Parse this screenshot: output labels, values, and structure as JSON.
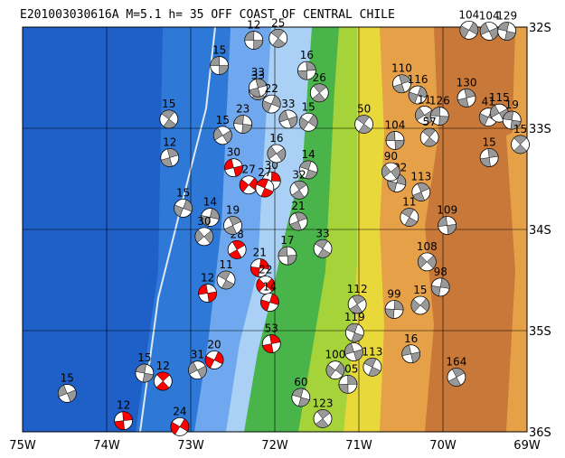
{
  "chart_data": {
    "type": "map",
    "title": "E201003030616A M=5.1 h= 35 OFF COAST OF CENTRAL CHILE",
    "xlim": [
      -75,
      -69
    ],
    "ylim": [
      -36,
      -32
    ],
    "xticks": [
      {
        "value": -75,
        "label": "75W"
      },
      {
        "value": -74,
        "label": "74W"
      },
      {
        "value": -73,
        "label": "73W"
      },
      {
        "value": -72,
        "label": "72W"
      },
      {
        "value": -71,
        "label": "71W"
      },
      {
        "value": -70,
        "label": "70W"
      },
      {
        "value": -69,
        "label": "69W"
      }
    ],
    "yticks": [
      {
        "value": -32,
        "label": "32S"
      },
      {
        "value": -33,
        "label": "33S"
      },
      {
        "value": -34,
        "label": "34S"
      },
      {
        "value": -35,
        "label": "35S"
      },
      {
        "value": -36,
        "label": "36S"
      }
    ],
    "grid": true,
    "points": {
      "x": [
        -72.66,
        -73.26,
        -73.25,
        -73.09,
        -72.62,
        -72.38,
        -72.2,
        -72.04,
        -72.72,
        -72.92,
        -73.55,
        -73.33,
        -73.8,
        -73.13,
        -74.47,
        -71.69,
        -71.43,
        -71.13,
        -71.28,
        -71.06,
        -71.05,
        -71.02,
        -70.58,
        -70.27,
        -70.38,
        -70.84,
        -69.84,
        -70.03,
        -70.19,
        -69.95,
        -70.4,
        -70.26,
        -70.55,
        -70.62,
        -70.57,
        -70.94,
        -70.49,
        -70.3,
        -70.22,
        -70.04,
        -70.16,
        -69.72,
        -69.46,
        -69.33,
        -69.18,
        -69.08,
        -69.45,
        -69.69,
        -69.45,
        -69.24,
        -71.47,
        -71.62,
        -71.6,
        -71.84,
        -71.6,
        -71.71,
        -72.04,
        -72.31,
        -72.49,
        -72.12,
        -72.45,
        -72.18,
        -72.11,
        -72.8,
        -72.58,
        -72.5,
        -72.77,
        -72.84,
        -71.85,
        -71.43,
        -71.72,
        -72.06,
        -71.98,
        -72.25,
        -71.96,
        -72.2,
        -72.04
      ],
      "y": [
        -32.38,
        -32.91,
        -33.29,
        -33.79,
        -33.07,
        -32.96,
        -32.63,
        -35.13,
        -35.29,
        -35.39,
        -35.42,
        -35.5,
        -35.89,
        -35.95,
        -35.62,
        -35.66,
        -35.87,
        -35.53,
        -35.39,
        -35.21,
        -35.02,
        -34.74,
        -34.79,
        -34.75,
        -35.23,
        -35.36,
        -35.46,
        -34.57,
        -34.32,
        -33.96,
        -33.88,
        -33.63,
        -33.54,
        -33.43,
        -33.12,
        -32.96,
        -32.56,
        -32.67,
        -32.87,
        -32.88,
        -33.09,
        -32.7,
        -32.89,
        -32.85,
        -32.92,
        -33.16,
        -33.29,
        -32.03,
        -32.04,
        -32.04,
        -32.65,
        -32.43,
        -32.94,
        -32.91,
        -33.41,
        -33.61,
        -33.52,
        -33.56,
        -33.39,
        -33.59,
        -34.2,
        -34.38,
        -34.55,
        -34.63,
        -34.5,
        -33.96,
        -33.88,
        -34.07,
        -34.26,
        -34.19,
        -33.92,
        -34.72,
        -33.25,
        -32.13,
        -32.11,
        -32.6,
        -32.76
      ],
      "depths": [
        15,
        15,
        12,
        15,
        15,
        23,
        33,
        53,
        20,
        31,
        15,
        12,
        12,
        24,
        15,
        60,
        123,
        105,
        100,
        13,
        119,
        112,
        99,
        15,
        16,
        113,
        164,
        98,
        108,
        109,
        11,
        113,
        102,
        90,
        104,
        50,
        110,
        116,
        11,
        126,
        57,
        130,
        41,
        115,
        19,
        15,
        15,
        104,
        104,
        129,
        26,
        16,
        15,
        33,
        14,
        32,
        30,
        27,
        30,
        27,
        28,
        21,
        22,
        12,
        11,
        19,
        14,
        30,
        17,
        33,
        21,
        14,
        16,
        12,
        25,
        33,
        22
      ],
      "colors": [
        "#999999",
        "#999999",
        "#999999",
        "#999999",
        "#999999",
        "#999999",
        "#999999",
        "#ff0000",
        "#ff0000",
        "#999999",
        "#999999",
        "#ff0000",
        "#ff0000",
        "#ff0000",
        "#999999",
        "#999999",
        "#999999",
        "#999999",
        "#999999",
        "#999999",
        "#999999",
        "#999999",
        "#999999",
        "#999999",
        "#999999",
        "#999999",
        "#999999",
        "#999999",
        "#999999",
        "#999999",
        "#999999",
        "#999999",
        "#999999",
        "#999999",
        "#999999",
        "#999999",
        "#999999",
        "#999999",
        "#999999",
        "#999999",
        "#999999",
        "#999999",
        "#999999",
        "#999999",
        "#999999",
        "#999999",
        "#999999",
        "#999999",
        "#999999",
        "#999999",
        "#999999",
        "#999999",
        "#999999",
        "#999999",
        "#999999",
        "#999999",
        "#ff0000",
        "#ff0000",
        "#ff0000",
        "#ff0000",
        "#ff0000",
        "#ff0000",
        "#ff0000",
        "#ff0000",
        "#999999",
        "#999999",
        "#999999",
        "#999999",
        "#999999",
        "#999999",
        "#999999",
        "#ff0000",
        "#999999",
        "#999999",
        "#999999",
        "#999999",
        "#999999"
      ]
    }
  }
}
